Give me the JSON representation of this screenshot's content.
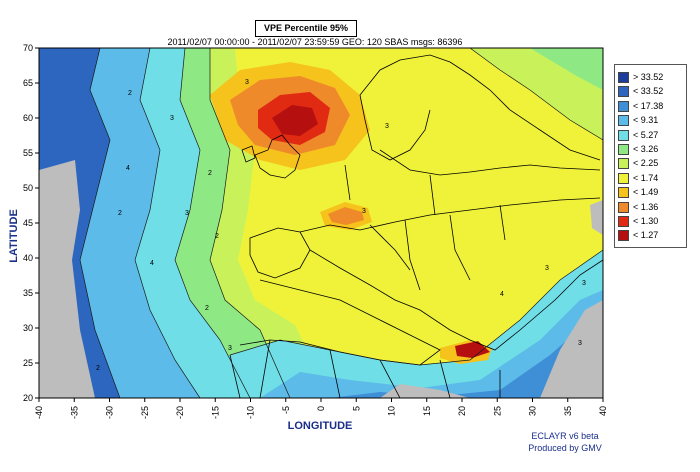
{
  "header": {
    "title": "VPE Percentile 95%",
    "subtitle": "2011/02/07 00:00:00 - 2011/02/07 23:59:59  GEO: 120  SBAS  msgs: 86396"
  },
  "footer": {
    "credit_line1": "ECLAYR v6 beta",
    "credit_line2": "Produced by GMV"
  },
  "chart_data": {
    "type": "heatmap",
    "title": "VPE Percentile 95%",
    "xlabel": "LONGITUDE",
    "ylabel": "LATITUDE",
    "xlim": [
      -40,
      40
    ],
    "ylim": [
      20,
      70
    ],
    "x_ticks": [
      "-40",
      "-35",
      "-30",
      "-25",
      "-20",
      "-15",
      "-10",
      "-5",
      "0",
      "5",
      "10",
      "15",
      "20",
      "25",
      "30",
      "35",
      "40"
    ],
    "y_ticks": [
      "20",
      "25",
      "30",
      "35",
      "40",
      "45",
      "50",
      "55",
      "60",
      "65",
      "70"
    ],
    "grid": false,
    "legend_position": "right",
    "legend": [
      {
        "label": "> 33.52",
        "color": "#1c3d9c"
      },
      {
        "label": "< 33.52",
        "color": "#2d66bf"
      },
      {
        "label": "< 17.38",
        "color": "#3f8fd6"
      },
      {
        "label": "< 9.31",
        "color": "#5cbbe8"
      },
      {
        "label": "< 5.27",
        "color": "#6fdee6"
      },
      {
        "label": "< 3.26",
        "color": "#8ee884"
      },
      {
        "label": "< 2.25",
        "color": "#c9f25a"
      },
      {
        "label": "< 1.74",
        "color": "#f0f23a"
      },
      {
        "label": "< 1.49",
        "color": "#f6c21c"
      },
      {
        "label": "< 1.36",
        "color": "#ef8a2a"
      },
      {
        "label": "< 1.30",
        "color": "#e02a12"
      },
      {
        "label": "< 1.27",
        "color": "#b50f0f"
      }
    ],
    "contour_labels": [
      "2",
      "3",
      "4"
    ],
    "land_mask_color": "#bdbdbd"
  }
}
